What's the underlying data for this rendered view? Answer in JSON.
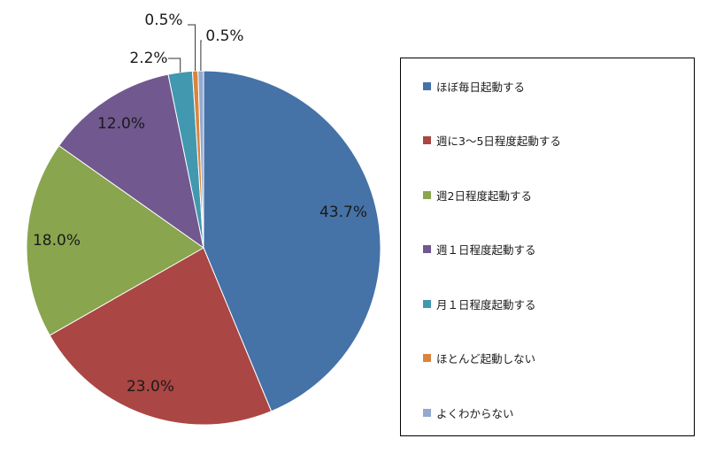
{
  "chart_data": {
    "type": "pie",
    "title": "",
    "start_angle_deg": 0,
    "direction": "clockwise",
    "legend_position": "right",
    "slices": [
      {
        "label": "ほぼ毎日起動する",
        "value": 43.7,
        "display": "43.7%",
        "color": "#4572A7"
      },
      {
        "label": "週に3～5日程度起動する",
        "value": 23.0,
        "display": "23.0%",
        "color": "#AA4643"
      },
      {
        "label": "週2日程度起動する",
        "value": 18.0,
        "display": "18.0%",
        "color": "#89A54E"
      },
      {
        "label": "週１日程度起動する",
        "value": 12.0,
        "display": "12.0%",
        "color": "#71588F"
      },
      {
        "label": "月１日程度起動する",
        "value": 2.2,
        "display": "2.2%",
        "color": "#4198AF"
      },
      {
        "label": "ほとんど起動しない",
        "value": 0.5,
        "display": "0.5%",
        "color": "#DB843D"
      },
      {
        "label": "よくわからない",
        "value": 0.5,
        "display": "0.5%",
        "color": "#93A9CF"
      }
    ]
  }
}
